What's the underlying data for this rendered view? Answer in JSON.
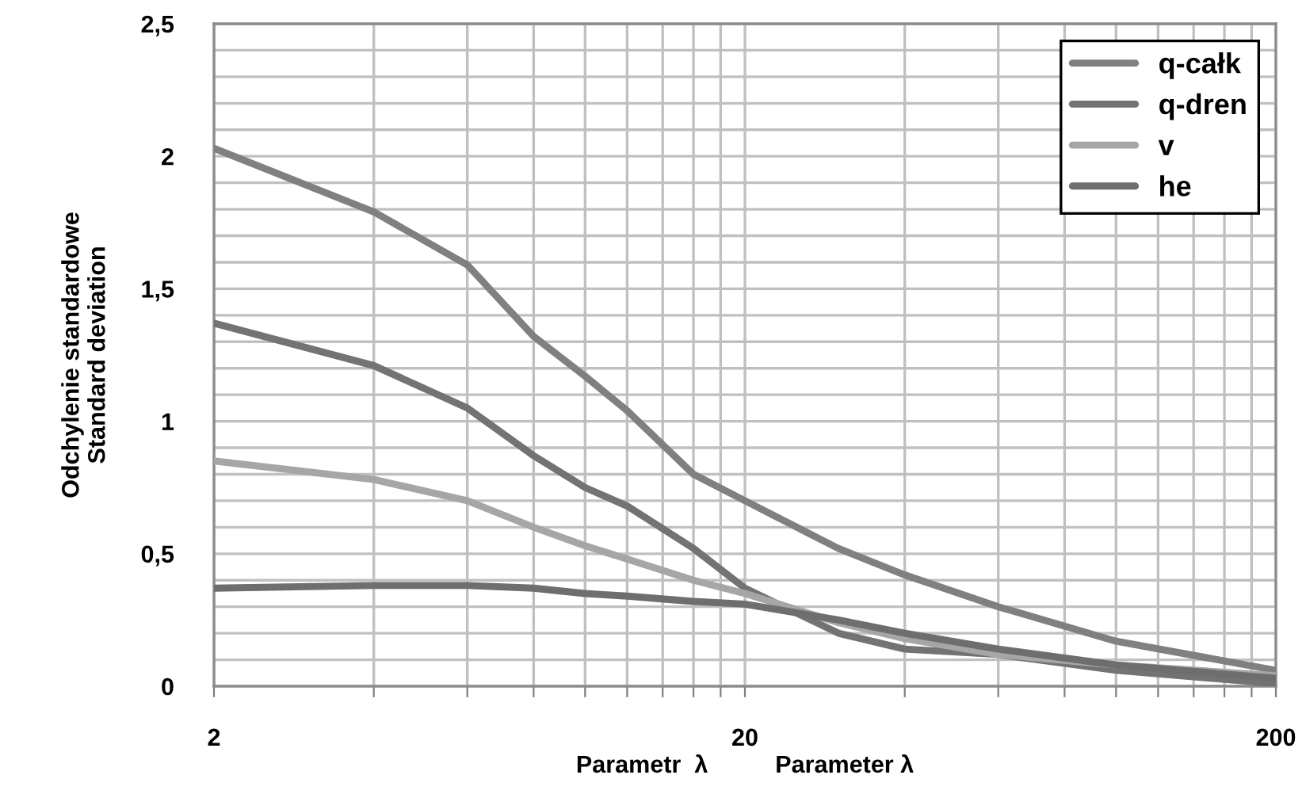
{
  "chart_data": {
    "type": "line",
    "xlabel": "Parametr  λ          Parameter λ",
    "ylabel": "Odchylenie standardowe\nStandard deviation",
    "log": "x",
    "x": [
      2,
      4,
      6,
      8,
      10,
      12,
      16,
      20,
      30,
      40,
      60,
      100,
      200
    ],
    "series": [
      {
        "name": "q-całk",
        "color": "#808080",
        "values": [
          2.03,
          1.79,
          1.59,
          1.32,
          1.17,
          1.04,
          0.8,
          0.7,
          0.52,
          0.42,
          0.3,
          0.17,
          0.06
        ]
      },
      {
        "name": "q-dren",
        "color": "#737373",
        "values": [
          1.37,
          1.21,
          1.05,
          0.87,
          0.75,
          0.68,
          0.52,
          0.37,
          0.2,
          0.14,
          0.12,
          0.06,
          0.01
        ]
      },
      {
        "name": "v",
        "color": "#a6a6a6",
        "values": [
          0.85,
          0.78,
          0.7,
          0.6,
          0.53,
          0.48,
          0.4,
          0.35,
          0.24,
          0.18,
          0.12,
          0.08,
          0.04
        ]
      },
      {
        "name": "he",
        "color": "#6e6e6e",
        "values": [
          0.37,
          0.38,
          0.38,
          0.37,
          0.35,
          0.34,
          0.32,
          0.31,
          0.25,
          0.2,
          0.14,
          0.08,
          0.03
        ]
      }
    ],
    "xlim": [
      2,
      200
    ],
    "ylim": [
      0,
      2.5
    ],
    "xticks": [
      2,
      {
        "value": 4,
        "label": null
      },
      {
        "value": 6,
        "label": null
      },
      {
        "value": 8,
        "label": null
      },
      {
        "value": 10,
        "label": null
      },
      {
        "value": 12,
        "label": null
      },
      {
        "value": 14,
        "label": null
      },
      {
        "value": 16,
        "label": null
      },
      {
        "value": 18,
        "label": null
      },
      20,
      {
        "value": 40,
        "label": null
      },
      {
        "value": 60,
        "label": null
      },
      {
        "value": 80,
        "label": null
      },
      {
        "value": 100,
        "label": null
      },
      {
        "value": 120,
        "label": null
      },
      {
        "value": 140,
        "label": null
      },
      {
        "value": 160,
        "label": null
      },
      {
        "value": 180,
        "label": null
      },
      200
    ],
    "yticks": [
      0,
      {
        "value": 0.1,
        "label": null
      },
      {
        "value": 0.2,
        "label": null
      },
      {
        "value": 0.3,
        "label": null
      },
      {
        "value": 0.4,
        "label": null
      },
      {
        "value": 0.5,
        "label": "0,5"
      },
      {
        "value": 0.6,
        "label": null
      },
      {
        "value": 0.7,
        "label": null
      },
      {
        "value": 0.8,
        "label": null
      },
      {
        "value": 0.9,
        "label": null
      },
      1,
      {
        "value": 1.1,
        "label": null
      },
      {
        "value": 1.2,
        "label": null
      },
      {
        "value": 1.3,
        "label": null
      },
      {
        "value": 1.4,
        "label": null
      },
      {
        "value": 1.5,
        "label": "1,5"
      },
      {
        "value": 1.6,
        "label": null
      },
      {
        "value": 1.7,
        "label": null
      },
      {
        "value": 1.8,
        "label": null
      },
      {
        "value": 1.9,
        "label": null
      },
      2,
      {
        "value": 2.1,
        "label": null
      },
      {
        "value": 2.2,
        "label": null
      },
      {
        "value": 2.3,
        "label": null
      },
      {
        "value": 2.4,
        "label": null
      },
      {
        "value": 2.5,
        "label": "2,5"
      }
    ],
    "grid": true,
    "legend": "top right",
    "marker": "none",
    "line_style": "solid"
  }
}
